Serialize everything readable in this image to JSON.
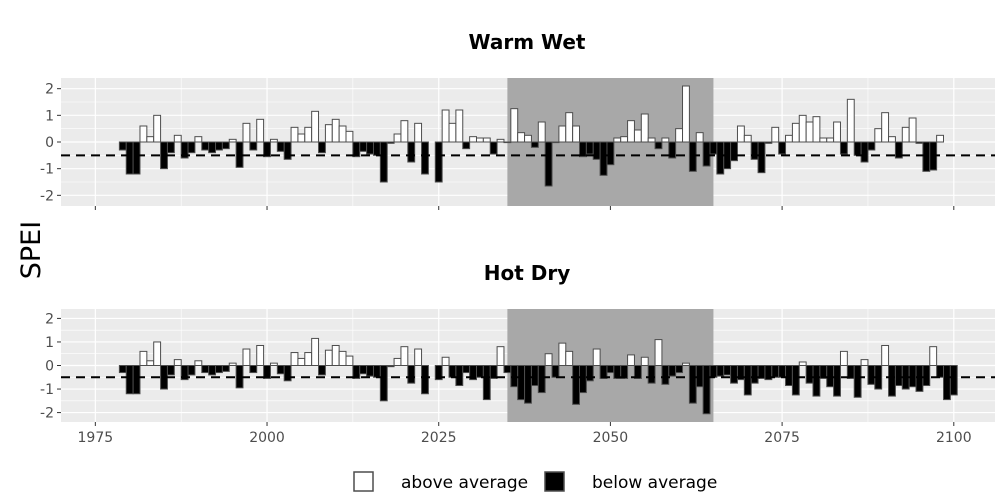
{
  "figure": {
    "ylabel": "SPEI",
    "legend": {
      "items": [
        {
          "label": "above average",
          "fill": "#ffffff"
        },
        {
          "label": "below average",
          "fill": "#000000"
        }
      ],
      "position": "bottom"
    }
  },
  "chart_data": [
    {
      "type": "bar",
      "title": "Warm Wet",
      "xlabel": "",
      "ylabel": "SPEI",
      "xlim": [
        1970,
        2106
      ],
      "ylim": [
        -2.4,
        2.4
      ],
      "xticks": [
        1975,
        2000,
        2025,
        2050,
        2075,
        2100
      ],
      "show_x_tick_labels": false,
      "yticks": [
        -2,
        -1,
        0,
        1,
        2
      ],
      "threshold": -0.5,
      "highlight_period": [
        2035,
        2065
      ],
      "highlight_color": "#a8a8a8",
      "panel_background": "#ebebeb",
      "grid": true,
      "segments": [
        {
          "start_year": 1979,
          "values": [
            -0.3,
            -1.2,
            -1.2,
            0.6,
            0.2,
            1.0,
            -1.0,
            -0.4,
            0.25,
            -0.6,
            -0.4,
            0.2,
            -0.3,
            -0.4,
            -0.3,
            -0.25,
            0.1,
            -0.95,
            0.7,
            -0.3,
            0.85,
            -0.55,
            0.1,
            -0.35,
            -0.65,
            0.55,
            0.3,
            0.55,
            1.15,
            -0.4,
            0.65,
            0.85,
            0.6,
            0.4,
            -0.55,
            -0.35,
            -0.45,
            -0.5,
            -1.5,
            -0.05,
            0.3,
            0.8,
            -0.75,
            0.7,
            -1.2
          ]
        },
        {
          "start_year": 2025,
          "values": [
            -1.5,
            1.2,
            0.7,
            1.2,
            -0.25,
            0.2,
            0.15,
            0.15,
            -0.45,
            0.1,
            0.0,
            1.25,
            0.35,
            0.25,
            -0.2,
            0.75,
            -1.65,
            0.0,
            0.6,
            1.1,
            0.6,
            -0.55,
            -0.45,
            -0.65,
            -1.25,
            -0.85,
            0.15,
            0.2,
            0.8,
            0.45,
            1.05,
            0.15,
            -0.25,
            0.15,
            -0.6,
            0.5,
            2.1,
            -1.1,
            0.35,
            -0.9,
            -0.45,
            -1.2,
            -1.0,
            -0.7,
            0.6,
            0.25,
            -0.65,
            -1.15,
            -0.05,
            0.55,
            -0.45,
            0.25,
            0.7,
            1.0,
            0.75,
            0.95,
            0.15,
            0.15,
            0.75,
            -0.45,
            1.6,
            -0.5,
            -0.75,
            -0.3,
            0.5,
            1.1,
            0.2,
            -0.6,
            0.55,
            0.9,
            -0.05,
            -1.1,
            -1.05,
            0.25
          ]
        }
      ]
    },
    {
      "type": "bar",
      "title": "Hot Dry",
      "xlabel": "",
      "ylabel": "SPEI",
      "xlim": [
        1970,
        2106
      ],
      "ylim": [
        -2.4,
        2.4
      ],
      "xticks": [
        1975,
        2000,
        2025,
        2050,
        2075,
        2100
      ],
      "show_x_tick_labels": true,
      "yticks": [
        -2,
        -1,
        0,
        1,
        2
      ],
      "threshold": -0.5,
      "highlight_period": [
        2035,
        2065
      ],
      "highlight_color": "#a8a8a8",
      "panel_background": "#ebebeb",
      "grid": true,
      "segments": [
        {
          "start_year": 1979,
          "values": [
            -0.3,
            -1.2,
            -1.2,
            0.6,
            0.2,
            1.0,
            -1.0,
            -0.4,
            0.25,
            -0.6,
            -0.4,
            0.2,
            -0.3,
            -0.4,
            -0.3,
            -0.25,
            0.1,
            -0.95,
            0.7,
            -0.3,
            0.85,
            -0.55,
            0.1,
            -0.35,
            -0.65,
            0.55,
            0.3,
            0.55,
            1.15,
            -0.4,
            0.65,
            0.85,
            0.6,
            0.4,
            -0.55,
            -0.35,
            -0.45,
            -0.5,
            -1.5,
            -0.05,
            0.3,
            0.8,
            -0.75,
            0.7,
            -1.2
          ]
        },
        {
          "start_year": 2025,
          "values": [
            -0.6,
            0.35,
            -0.5,
            -0.85,
            -0.3,
            -0.6,
            -0.5,
            -1.45,
            -0.55,
            0.8,
            -0.3,
            -0.9,
            -1.45,
            -1.6,
            -0.85,
            -1.15,
            0.5,
            -0.5,
            0.95,
            0.6,
            -1.65,
            -1.15,
            -0.65,
            0.7,
            -0.55,
            -0.3,
            -0.55,
            -0.55,
            0.45,
            -0.55,
            0.35,
            -0.75,
            1.1,
            -0.8,
            -0.45,
            -0.3,
            0.1,
            -1.6,
            -0.9,
            -2.05,
            -0.5,
            -0.45,
            -0.4,
            -0.75,
            -0.6,
            -1.25,
            -0.75,
            -0.55,
            -0.6,
            -0.5,
            -0.5,
            -0.85,
            -1.25,
            0.15,
            -0.75,
            -1.3,
            -0.55,
            -0.9,
            -1.3,
            0.6,
            -0.55,
            -1.35,
            0.25,
            -0.8,
            -1.0,
            0.85,
            -1.3,
            -0.85,
            -1.0,
            -0.9,
            -1.1,
            -0.85,
            0.8,
            -0.5,
            -1.45,
            -1.25
          ]
        }
      ]
    }
  ]
}
